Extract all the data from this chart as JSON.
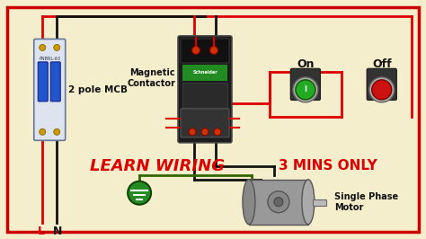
{
  "bg_color": "#f5eecc",
  "border_color": "#cc0000",
  "labels": {
    "mcb": "2 pole MCB",
    "contactor": "Magnetic\nContactor",
    "on": "On",
    "off": "Off",
    "motor": "Single Phase\nMotor",
    "learn": "LEARN WIRING",
    "mins": "3 MINS ONLY",
    "L": "L",
    "N": "N"
  },
  "wire_red": "#dd0000",
  "wire_black": "#111111",
  "wire_green": "#336600",
  "mcb_body": "#dde4f0",
  "mcb_handle": "#2255cc",
  "contactor_body": "#1a1a1a",
  "contactor_green": "#228B22",
  "on_button": "#22aa22",
  "off_button": "#cc1111",
  "ground_green": "#228B22"
}
